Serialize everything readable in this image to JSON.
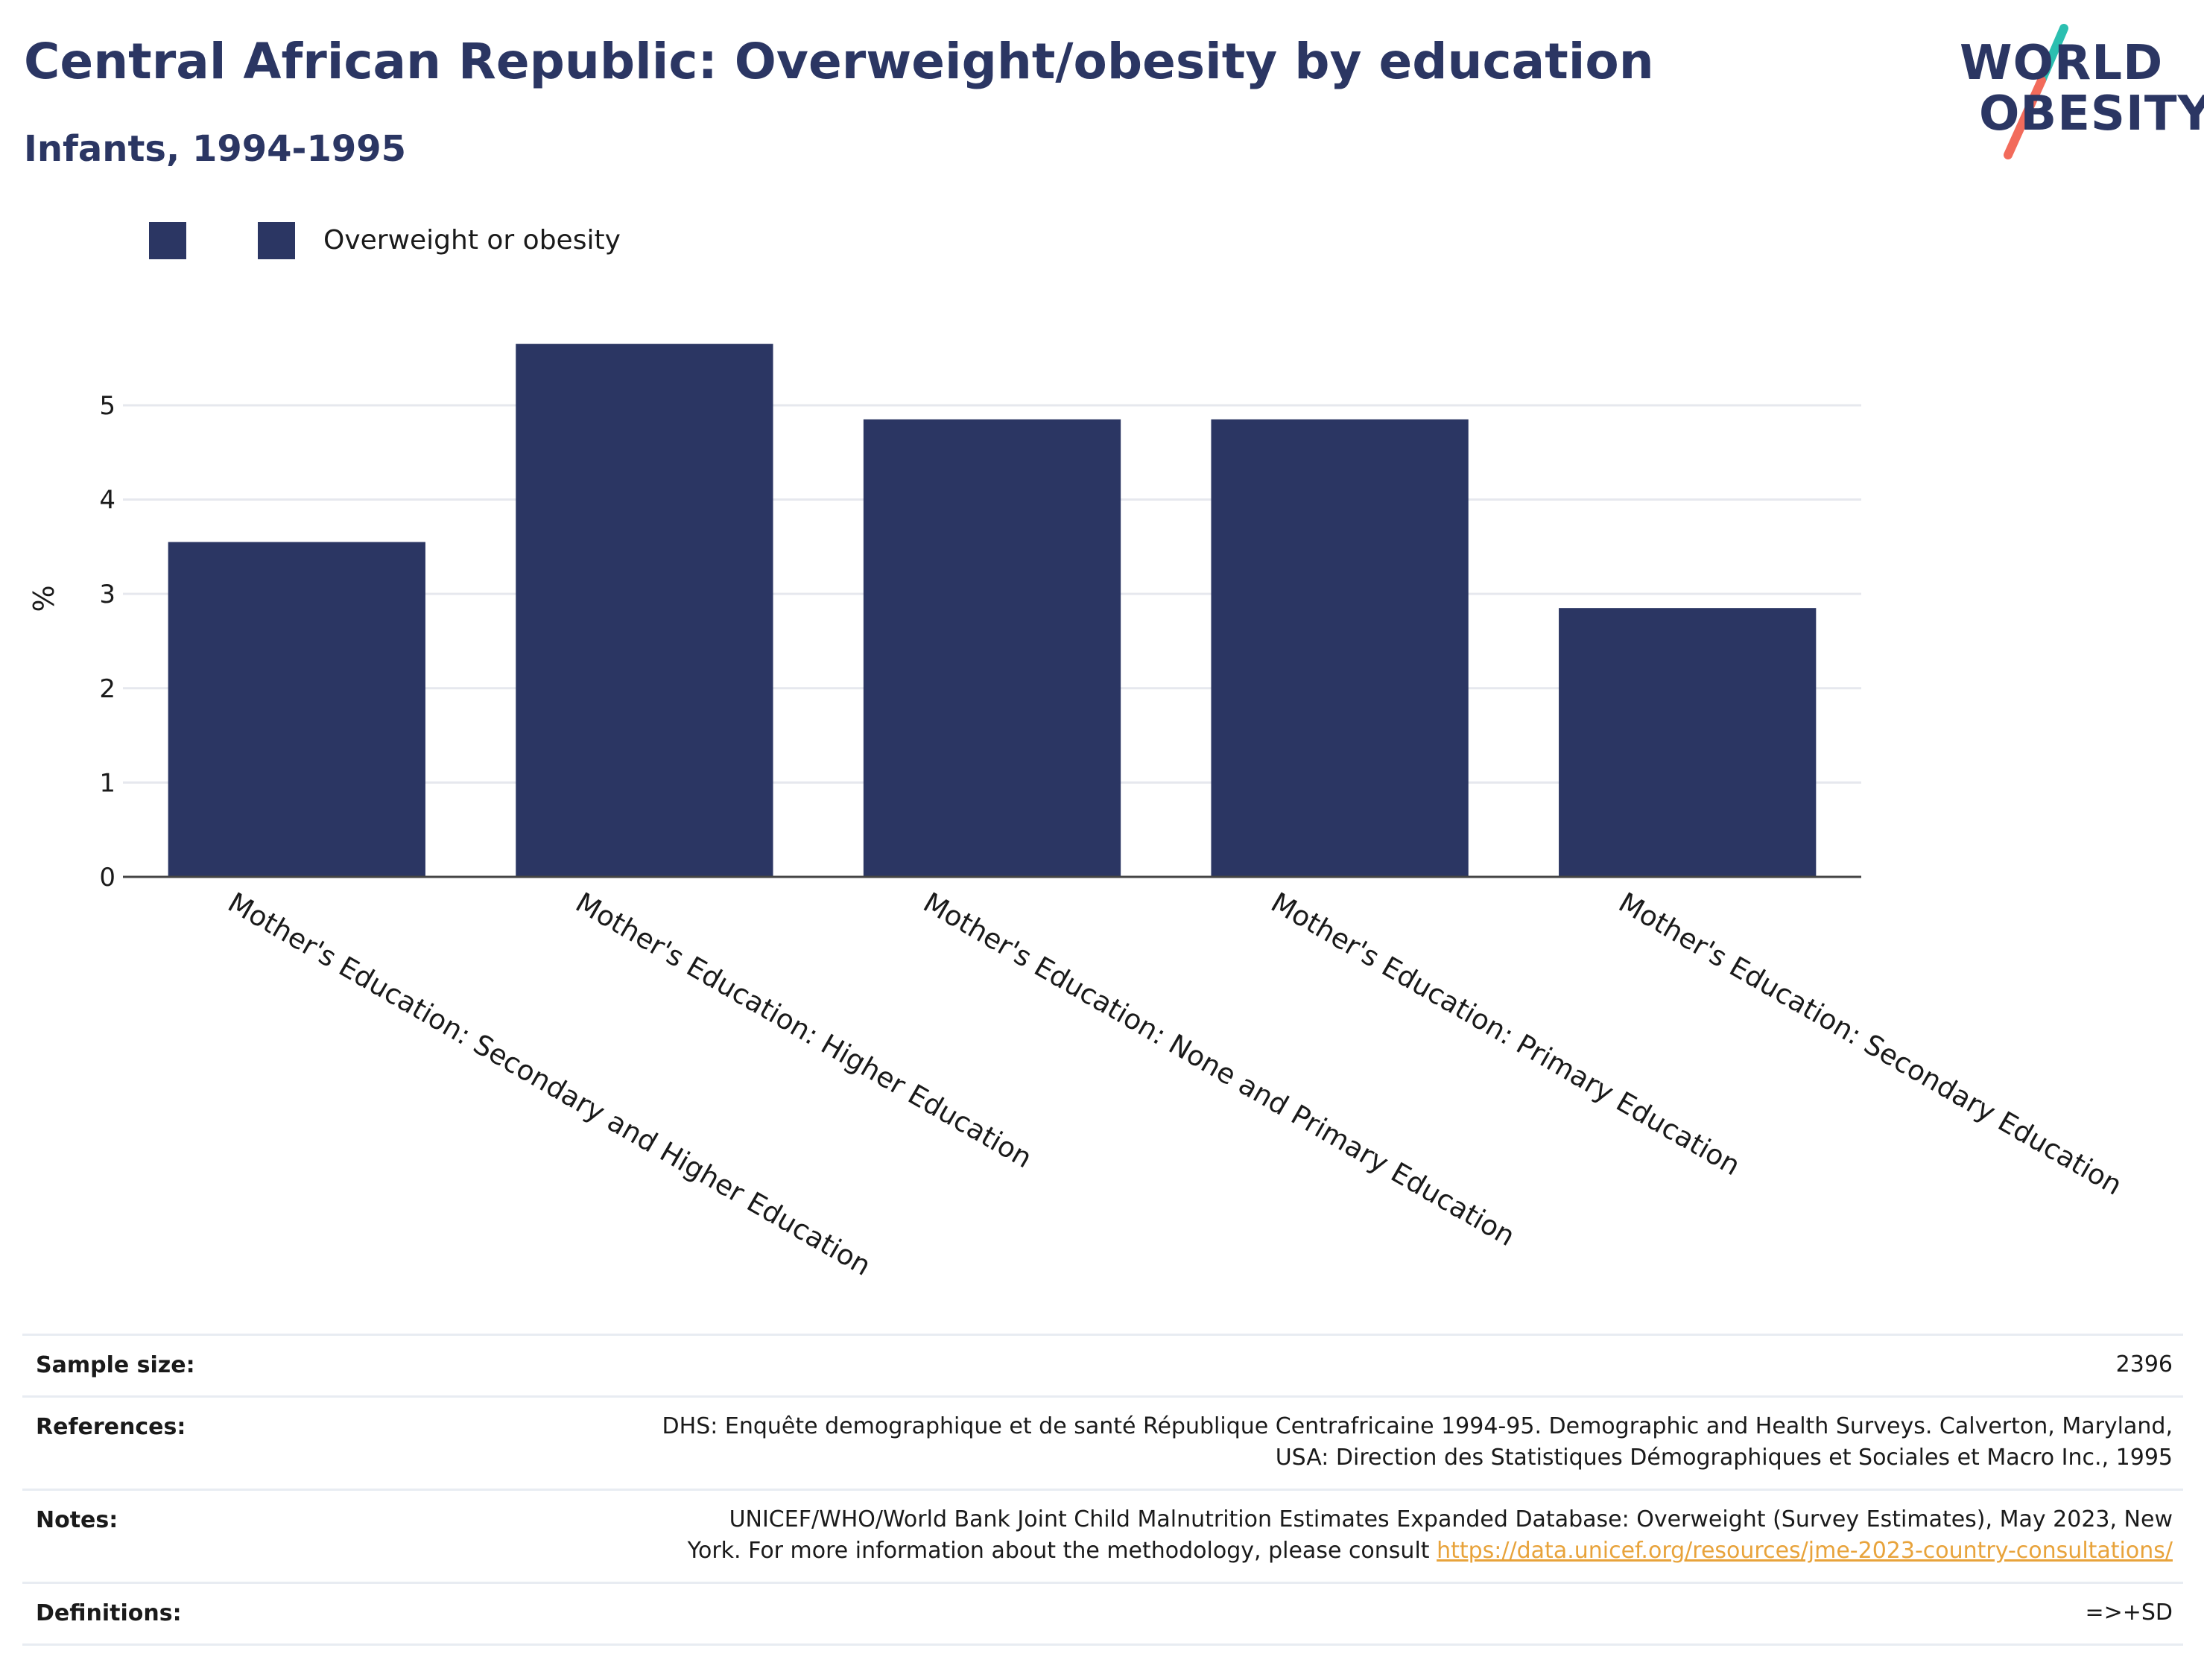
{
  "header": {
    "title": "Central African Republic: Overweight/obesity by education",
    "subtitle": "Infants, 1994-1995"
  },
  "logo": {
    "line1": "WORLD",
    "line2": "OBESITY",
    "slash_top_color": "#2bbfb0",
    "slash_bottom_color": "#f26b5b"
  },
  "legend": {
    "items": [
      {
        "label": ""
      },
      {
        "label": "Overweight or obesity"
      }
    ]
  },
  "chart_data": {
    "type": "bar",
    "categories": [
      "Mother's Education: Secondary and Higher Education",
      "Mother's Education: Higher Education",
      "Mother's Education: None and Primary Education",
      "Mother's Education: Primary Education",
      "Mother's Education: Secondary Education"
    ],
    "series": [
      {
        "name": "Overweight or obesity",
        "values": [
          3.55,
          5.65,
          4.85,
          4.85,
          2.85
        ],
        "color": "#2b3663"
      }
    ],
    "ylabel": "%",
    "xlabel": "",
    "ylim": [
      0,
      5.9
    ],
    "yticks": [
      0,
      1,
      2,
      3,
      4,
      5
    ],
    "grid": true,
    "legend_position": "top-left"
  },
  "info_table": {
    "rows": [
      {
        "label": "Sample size:",
        "value_lines": [
          "2396"
        ]
      },
      {
        "label": "References:",
        "value_lines": [
          "DHS: Enquête demographique et de santé République Centrafricaine 1994-95. Demographic and Health Surveys. Calverton, Maryland,",
          "USA: Direction des Statistiques Démographiques et Sociales et Macro Inc., 1995"
        ]
      },
      {
        "label": "Notes:",
        "value_lines": [
          "UNICEF/WHO/World Bank Joint Child Malnutrition Estimates Expanded Database: Overweight (Survey Estimates), May 2023, New",
          "York. For more information about the methodology, please consult "
        ],
        "link": "https://data.unicef.org/resources/jme-2023-country-consultations/"
      },
      {
        "label": "Definitions:",
        "value_lines": [
          "=>+SD"
        ]
      }
    ]
  }
}
